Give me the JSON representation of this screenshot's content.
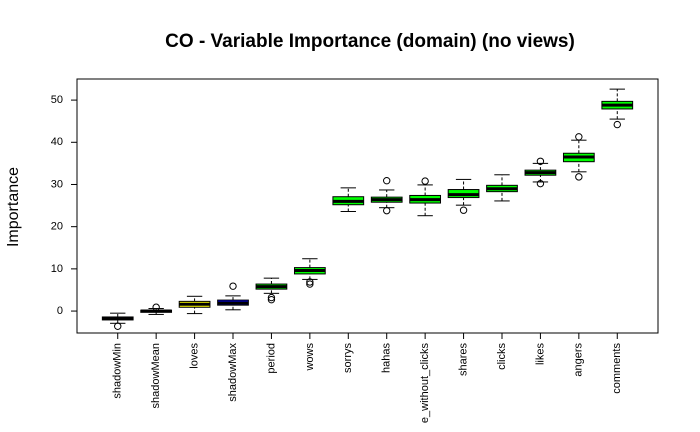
{
  "chart_data": {
    "type": "box",
    "title": "CO - Variable Importance (domain) (no views)",
    "ylabel": "Importance",
    "categories": [
      "shadowMin",
      "shadowMean",
      "loves",
      "shadowMax",
      "period",
      "wows",
      "sorrys",
      "hahas",
      "e_without_clicks",
      "shares",
      "clicks",
      "likes",
      "angers",
      "comments"
    ],
    "colors": [
      "#0000ff",
      "#0000ff",
      "#ffff00",
      "#0000ff",
      "#00ff00",
      "#00ff00",
      "#00ff00",
      "#00ff00",
      "#00ff00",
      "#00ff00",
      "#00ff00",
      "#00ff00",
      "#00ff00",
      "#00ff00"
    ],
    "boxes": [
      {
        "low": -2.9,
        "q1": -2.1,
        "median": -1.8,
        "q3": -1.4,
        "high": -0.5,
        "outliers": [
          -3.6
        ]
      },
      {
        "low": -0.8,
        "q1": -0.3,
        "median": 0,
        "q3": 0.2,
        "high": 0.6,
        "outliers": [
          0.9
        ]
      },
      {
        "low": -0.6,
        "q1": 0.9,
        "median": 1.6,
        "q3": 2.3,
        "high": 3.5,
        "outliers": []
      },
      {
        "low": 0.3,
        "q1": 1.4,
        "median": 1.9,
        "q3": 2.6,
        "high": 3.6,
        "outliers": [
          5.9
        ]
      },
      {
        "low": 4.2,
        "q1": 5.2,
        "median": 5.8,
        "q3": 6.4,
        "high": 7.8,
        "outliers": [
          3.2,
          2.7
        ]
      },
      {
        "low": 7.5,
        "q1": 8.8,
        "median": 9.6,
        "q3": 10.3,
        "high": 12.4,
        "outliers": [
          6.9,
          6.4
        ]
      },
      {
        "low": 23.6,
        "q1": 25.2,
        "median": 26.0,
        "q3": 27.1,
        "high": 29.2,
        "outliers": []
      },
      {
        "low": 24.5,
        "q1": 25.8,
        "median": 26.4,
        "q3": 27.0,
        "high": 28.7,
        "outliers": [
          30.9,
          23.8
        ]
      },
      {
        "low": 22.6,
        "q1": 25.6,
        "median": 26.4,
        "q3": 27.4,
        "high": 29.9,
        "outliers": [
          30.8
        ]
      },
      {
        "low": 25.1,
        "q1": 26.9,
        "median": 27.6,
        "q3": 28.8,
        "high": 31.2,
        "outliers": [
          23.9
        ]
      },
      {
        "low": 26.1,
        "q1": 28.3,
        "median": 29.0,
        "q3": 29.8,
        "high": 32.3,
        "outliers": []
      },
      {
        "low": 30.6,
        "q1": 32.2,
        "median": 32.8,
        "q3": 33.4,
        "high": 35.0,
        "outliers": [
          35.5,
          30.2
        ]
      },
      {
        "low": 33.0,
        "q1": 35.4,
        "median": 36.5,
        "q3": 37.4,
        "high": 40.5,
        "outliers": [
          41.3,
          31.8
        ]
      },
      {
        "low": 45.5,
        "q1": 47.9,
        "median": 48.8,
        "q3": 49.7,
        "high": 52.6,
        "outliers": [
          44.2
        ]
      }
    ],
    "ylim": [
      -5.2,
      55
    ],
    "yticks": [
      0,
      10,
      20,
      30,
      40,
      50
    ]
  }
}
